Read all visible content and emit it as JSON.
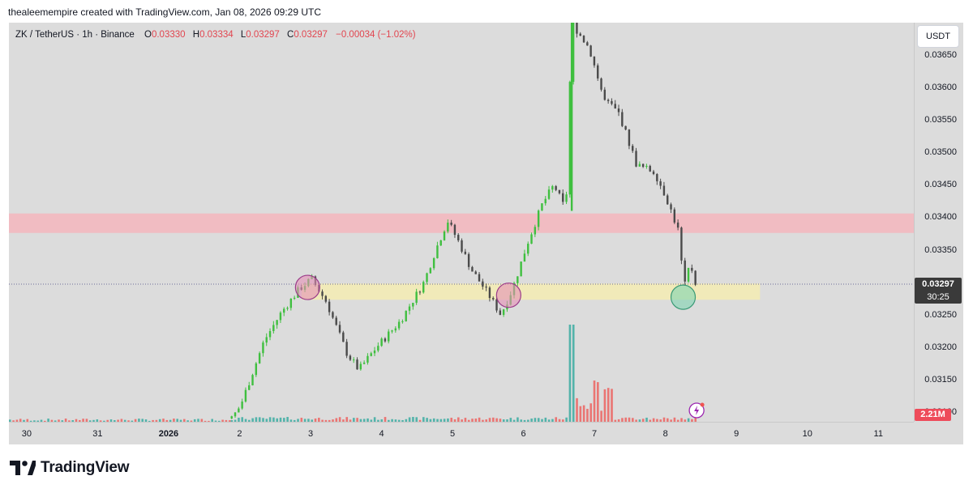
{
  "attribution": "thealeemempire created with TradingView.com, Jan 08, 2026 09:29 UTC",
  "legend": {
    "symbol": "ZK / TetherUS · 1h · Binance",
    "open_label": "O",
    "open": "0.03330",
    "high_label": "H",
    "high": "0.03334",
    "low_label": "L",
    "low": "0.03297",
    "close_label": "C",
    "close": "0.03297",
    "change": "−0.00034 (−1.02%)"
  },
  "currency_button": "USDT",
  "price_axis": {
    "ticks": [
      "0.03650",
      "0.03600",
      "0.03550",
      "0.03500",
      "0.03450",
      "0.03400",
      "0.03350",
      "0.03250",
      "0.03200",
      "0.03150",
      "0.03100"
    ],
    "last_price": "0.03297",
    "countdown": "30:25",
    "volume_label": "2.21M"
  },
  "time_axis": {
    "ticks": [
      "30",
      "31",
      "2026",
      "2",
      "3",
      "4",
      "5",
      "6",
      "7",
      "8",
      "9",
      "10",
      "11"
    ]
  },
  "brand": {
    "name": "TradingView",
    "icon": "tradingview-logo-icon"
  },
  "colors": {
    "up": "#26a69a",
    "down": "#ef5350",
    "candle_up": "#3fbf3f",
    "candle_down": "#4a4a4a",
    "resistance_zone": "#f4b6bd",
    "support_zone": "#f3ebb5",
    "circle_pink": "#e58fb6",
    "circle_green": "#7fd3b0",
    "background": "#dcdcdc"
  },
  "chart_data": {
    "type": "candlestick",
    "symbol": "ZK / TetherUS",
    "interval": "1h",
    "exchange": "Binance",
    "x_range": [
      "2025-12-29T18:00",
      "2026-01-11T12:00"
    ],
    "y_range": [
      0.03085,
      0.037
    ],
    "price_levels": [
      0.0365,
      0.036,
      0.0355,
      0.035,
      0.0345,
      0.034,
      0.0335,
      0.0325,
      0.032,
      0.0315,
      0.031
    ],
    "last_price": 0.03297,
    "zones": [
      {
        "kind": "resistance",
        "from": 0.03376,
        "to": 0.03406
      },
      {
        "kind": "support",
        "from": 0.03273,
        "to": 0.03298
      }
    ],
    "markers": [
      {
        "shape": "circle",
        "color": "pink",
        "time": "2026-01-02T23:00",
        "price": 0.03292
      },
      {
        "shape": "circle",
        "color": "pink",
        "time": "2026-01-05T19:00",
        "price": 0.0328
      },
      {
        "shape": "circle",
        "color": "green",
        "time": "2026-01-08T06:00",
        "price": 0.03277
      }
    ],
    "close_path": [
      [
        "2026-01-01T21:00",
        0.0309
      ],
      [
        "2026-01-02T00:00",
        0.0311
      ],
      [
        "2026-01-02T04:00",
        0.0316
      ],
      [
        "2026-01-02T08:00",
        0.0321
      ],
      [
        "2026-01-02T14:00",
        0.03255
      ],
      [
        "2026-01-02T20:00",
        0.0329
      ],
      [
        "2026-01-03T00:00",
        0.03305
      ],
      [
        "2026-01-03T05:00",
        0.0327
      ],
      [
        "2026-01-03T12:00",
        0.0319
      ],
      [
        "2026-01-03T16:00",
        0.03165
      ],
      [
        "2026-01-03T22:00",
        0.032
      ],
      [
        "2026-01-04T06:00",
        0.0324
      ],
      [
        "2026-01-04T14:00",
        0.033
      ],
      [
        "2026-01-04T18:00",
        0.0335
      ],
      [
        "2026-01-04T22:00",
        0.03395
      ],
      [
        "2026-01-05T02:00",
        0.0336
      ],
      [
        "2026-01-05T06:00",
        0.0332
      ],
      [
        "2026-01-05T12:00",
        0.0328
      ],
      [
        "2026-01-05T16:00",
        0.0325
      ],
      [
        "2026-01-05T20:00",
        0.0329
      ],
      [
        "2026-01-06T01:00",
        0.0336
      ],
      [
        "2026-01-06T06:00",
        0.0342
      ],
      [
        "2026-01-06T10:00",
        0.0345
      ],
      [
        "2026-01-06T14:00",
        0.0341
      ],
      [
        "2026-01-06T16:00",
        0.037
      ],
      [
        "2026-01-06T22:00",
        0.0366
      ],
      [
        "2026-01-07T03:00",
        0.0358
      ],
      [
        "2026-01-07T08:00",
        0.0356
      ],
      [
        "2026-01-07T14:00",
        0.0348
      ],
      [
        "2026-01-07T20:00",
        0.0347
      ],
      [
        "2026-01-08T00:00",
        0.0343
      ],
      [
        "2026-01-08T04:00",
        0.0338
      ],
      [
        "2026-01-08T06:00",
        0.0329
      ],
      [
        "2026-01-08T08:00",
        0.0333
      ],
      [
        "2026-01-08T10:00",
        0.03297
      ]
    ],
    "volume_last": "2.21M"
  }
}
